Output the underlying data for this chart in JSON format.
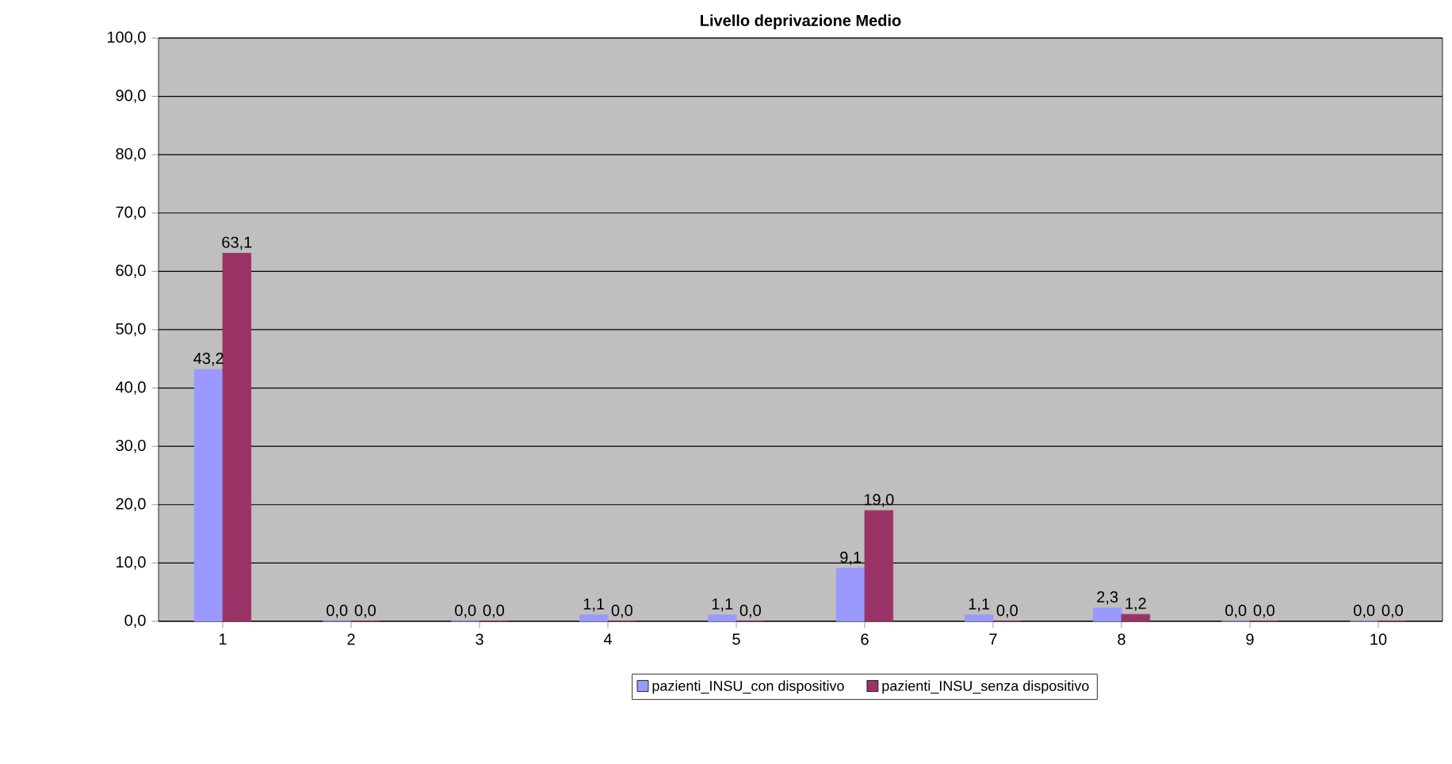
{
  "chart_data": {
    "type": "bar",
    "title": "Livello deprivazione Medio",
    "categories": [
      "1",
      "2",
      "3",
      "4",
      "5",
      "6",
      "7",
      "8",
      "9",
      "10"
    ],
    "series": [
      {
        "name": "pazienti_INSU_con dispositivo",
        "color": "#9999ff",
        "values": [
          43.2,
          0.0,
          0.0,
          1.1,
          1.1,
          9.1,
          1.1,
          2.3,
          0.0,
          0.0
        ],
        "value_labels": [
          "43,2",
          "0,0",
          "0,0",
          "1,1",
          "1,1",
          "9,1",
          "1,1",
          "2,3",
          "0,0",
          "0,0"
        ]
      },
      {
        "name": "pazienti_INSU_senza dispositivo",
        "color": "#993366",
        "values": [
          63.1,
          0.0,
          0.0,
          0.0,
          0.0,
          19.0,
          0.0,
          1.2,
          0.0,
          0.0
        ],
        "value_labels": [
          "63,1",
          "0,0",
          "0,0",
          "0,0",
          "0,0",
          "19,0",
          "0,0",
          "1,2",
          "0,0",
          "0,0"
        ]
      }
    ],
    "ylim": [
      0,
      100
    ],
    "yticks": [
      {
        "value": 0,
        "label": "0,0"
      },
      {
        "value": 10,
        "label": "10,0"
      },
      {
        "value": 20,
        "label": "20,0"
      },
      {
        "value": 30,
        "label": "30,0"
      },
      {
        "value": 40,
        "label": "40,0"
      },
      {
        "value": 50,
        "label": "50,0"
      },
      {
        "value": 60,
        "label": "60,0"
      },
      {
        "value": 70,
        "label": "70,0"
      },
      {
        "value": 80,
        "label": "80,0"
      },
      {
        "value": 90,
        "label": "90,0"
      },
      {
        "value": 100,
        "label": "100,0"
      }
    ],
    "grid": "y",
    "legend": "bottom"
  }
}
